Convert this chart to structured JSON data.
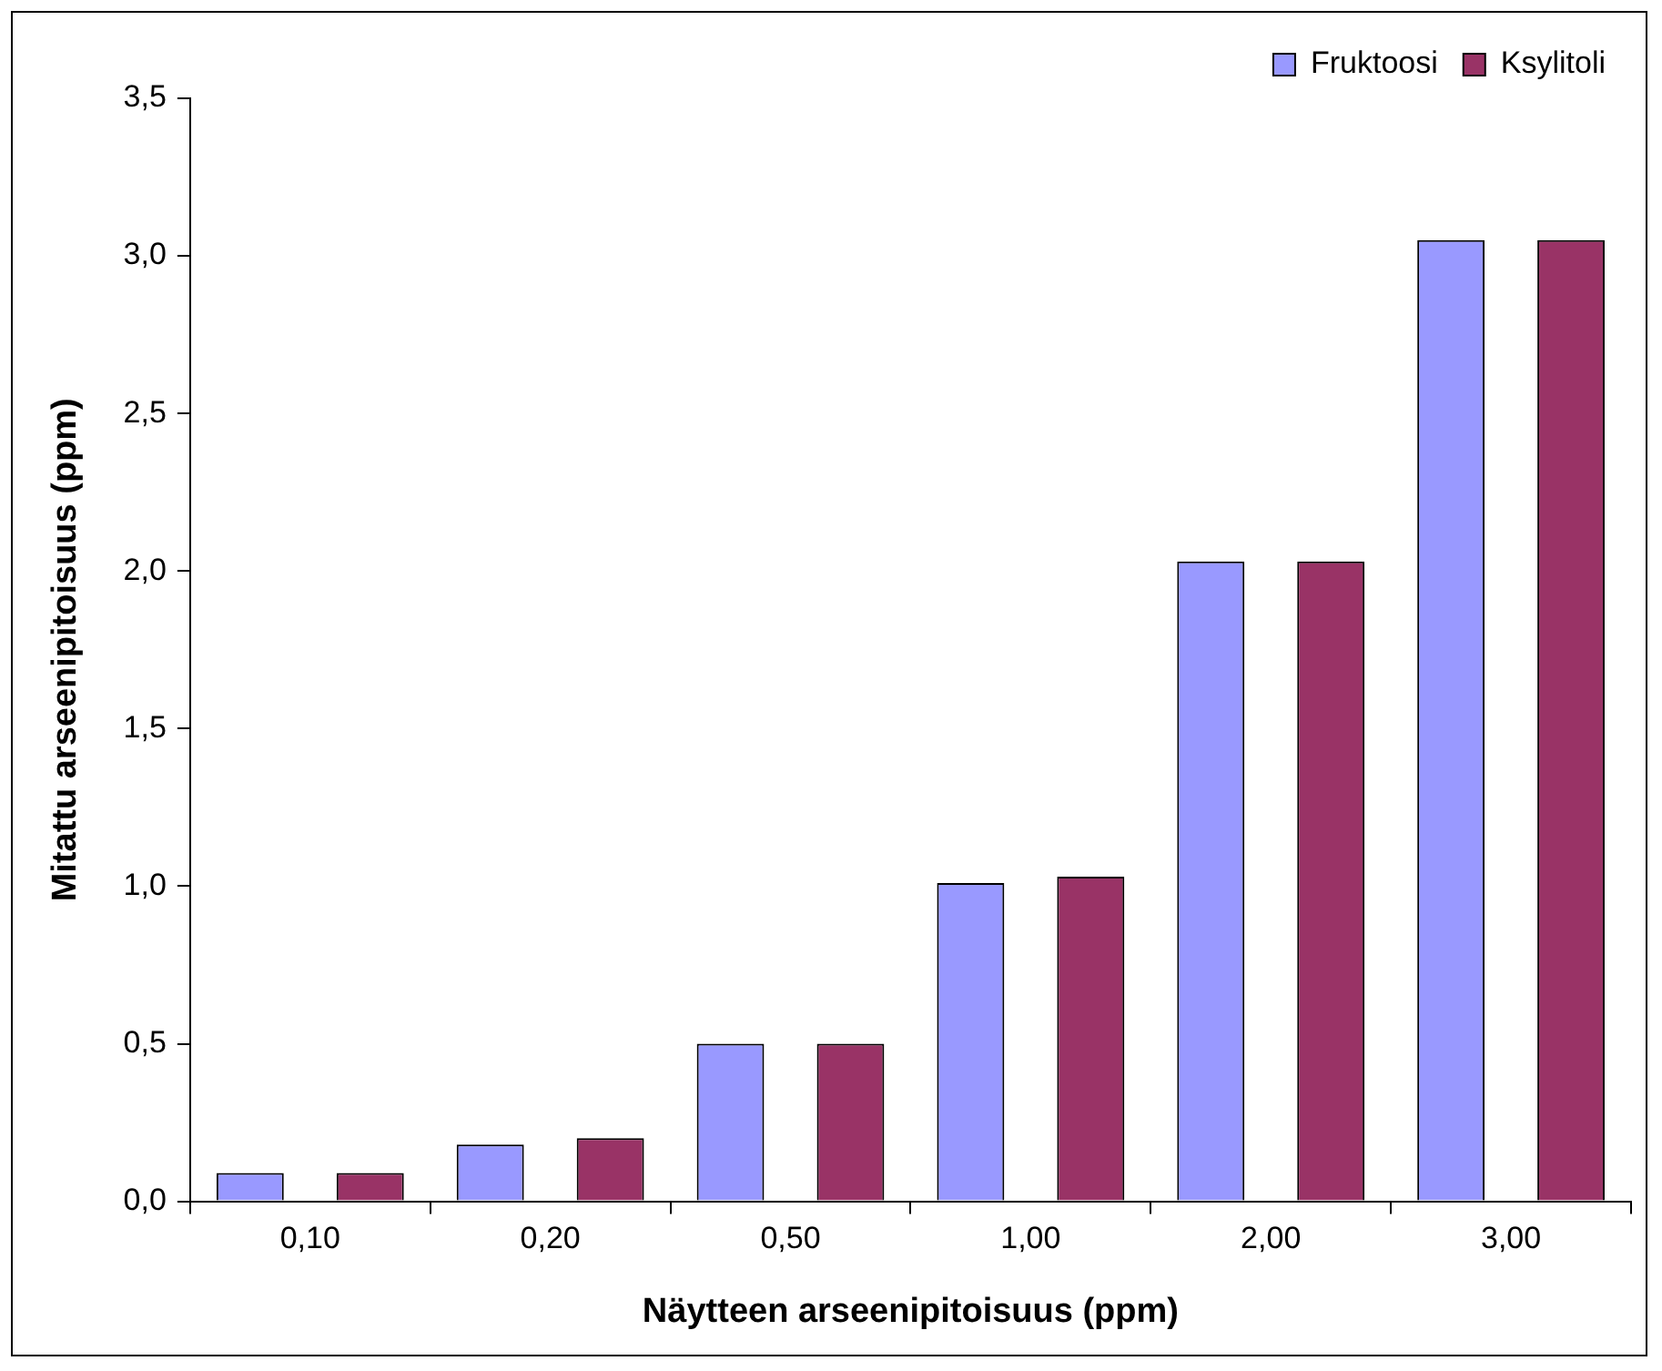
{
  "chart_data": {
    "type": "bar",
    "xlabel": "Näytteen arseenipitoisuus (ppm)",
    "ylabel": "Mitattu arseenipitoisuus (ppm)",
    "categories": [
      "0,10",
      "0,20",
      "0,50",
      "1,00",
      "2,00",
      "3,00"
    ],
    "series": [
      {
        "name": "Fruktoosi",
        "color": "#9999ff",
        "values": [
          0.09,
          0.18,
          0.5,
          1.01,
          2.03,
          3.05
        ]
      },
      {
        "name": "Ksylitoli",
        "color": "#993366",
        "values": [
          0.09,
          0.2,
          0.5,
          1.03,
          2.03,
          3.05
        ]
      }
    ],
    "ylim": [
      0,
      3.5
    ],
    "yticks": [
      {
        "value": 0,
        "label": "0,0"
      },
      {
        "value": 0.5,
        "label": "0,5"
      },
      {
        "value": 1,
        "label": "1,0"
      },
      {
        "value": 1.5,
        "label": "1,5"
      },
      {
        "value": 2,
        "label": "2,0"
      },
      {
        "value": 2.5,
        "label": "2,5"
      },
      {
        "value": 3,
        "label": "3,0"
      },
      {
        "value": 3.5,
        "label": "3,5"
      }
    ],
    "grid": false,
    "legend": "top right"
  }
}
